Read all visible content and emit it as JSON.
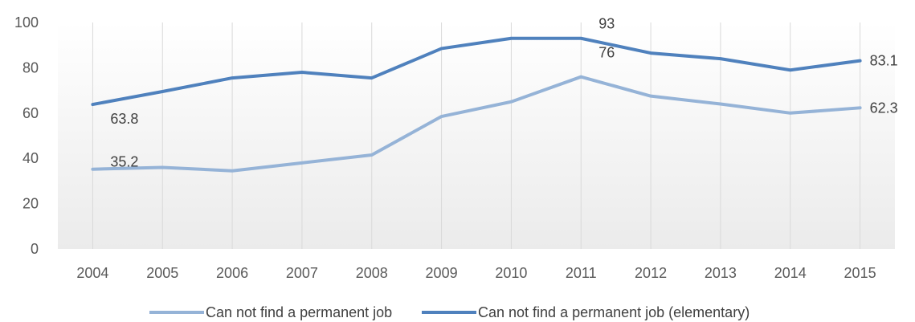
{
  "chart_data": {
    "type": "line",
    "categories": [
      "2004",
      "2005",
      "2006",
      "2007",
      "2008",
      "2009",
      "2010",
      "2011",
      "2012",
      "2013",
      "2014",
      "2015"
    ],
    "ylim": [
      0,
      100
    ],
    "yticks": [
      0,
      20,
      40,
      60,
      80,
      100
    ],
    "grid": "vertical",
    "legend_position": "bottom",
    "series": [
      {
        "name": "Can not find a permanent job",
        "color": "#95b3d7",
        "values": [
          35.2,
          36,
          34.5,
          38,
          41.5,
          58.5,
          65,
          76,
          67.5,
          64,
          60,
          62.3
        ],
        "labels": {
          "0": "35.2",
          "7": "76",
          "11": "62.3"
        }
      },
      {
        "name": "Can not find a permanent job (elementary)",
        "color": "#4f81bd",
        "values": [
          63.8,
          69.5,
          75.5,
          78,
          75.5,
          88.5,
          93,
          93,
          86.5,
          84,
          79,
          83.1
        ],
        "labels": {
          "0": "63.8",
          "7": "93",
          "11": "83.1"
        }
      }
    ]
  }
}
